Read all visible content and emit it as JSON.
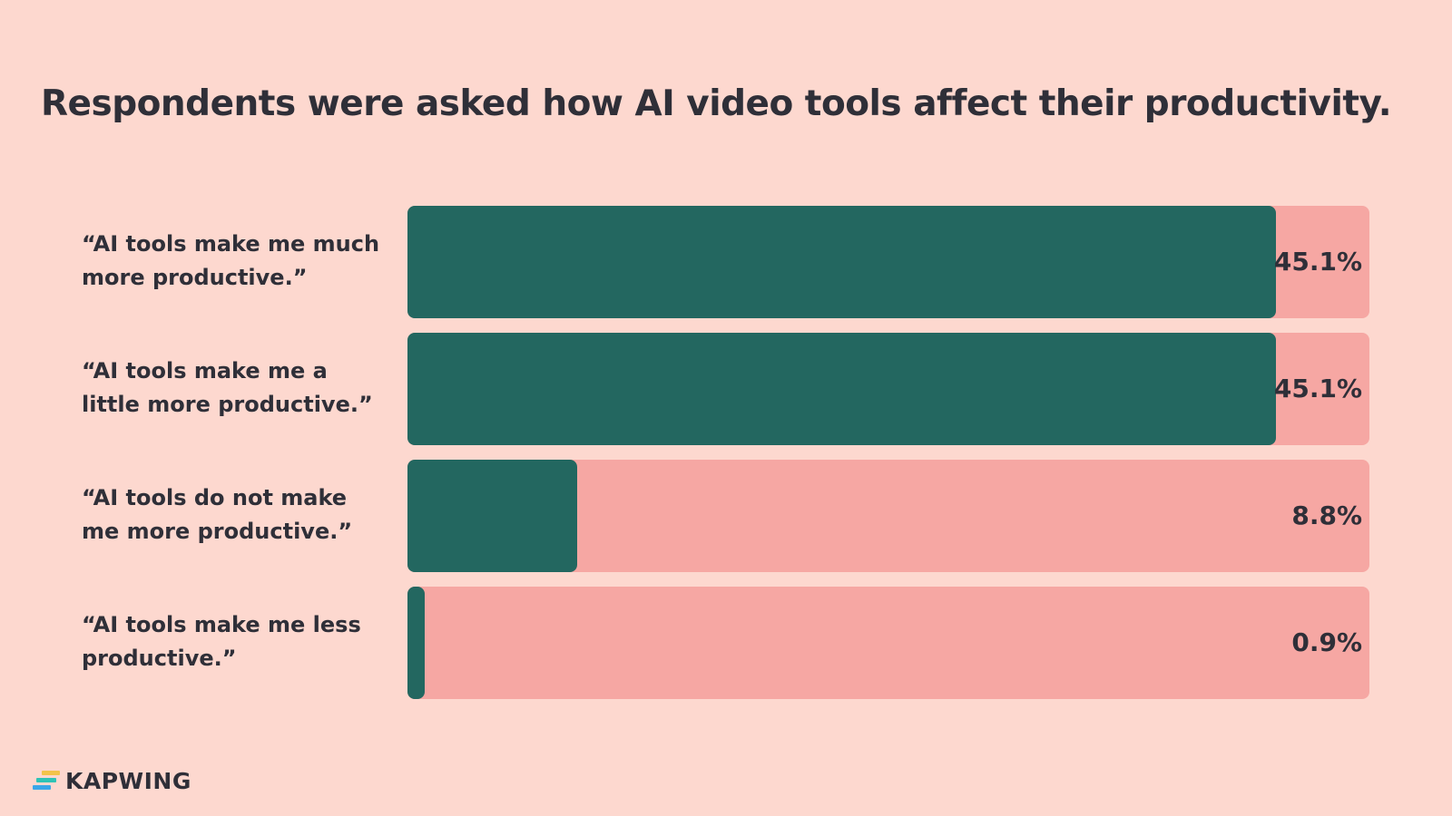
{
  "colors": {
    "background": "#fdd8cf",
    "bar_fill": "#236760",
    "bar_track": "#f6a7a3",
    "text": "#2f2f38",
    "logo_stripes": [
      "#f3c34a",
      "#2fc3b6",
      "#3aa6e8"
    ]
  },
  "chart_data": {
    "type": "bar",
    "orientation": "horizontal",
    "title": "Respondents were asked how AI video tools affect their productivity.",
    "categories": [
      "“AI tools make me much more productive.”",
      "“AI tools make me a little more productive.”",
      "“AI tools do not make me more productive.”",
      "“AI tools make me less productive.”"
    ],
    "values": [
      45.1,
      45.1,
      8.8,
      0.9
    ],
    "value_labels": [
      "45.1%",
      "45.1%",
      "8.8%",
      "0.9%"
    ],
    "unit": "%",
    "xlim": [
      0,
      50
    ],
    "grid": false,
    "legend": "none"
  },
  "brand": {
    "name": "KAPWING"
  }
}
